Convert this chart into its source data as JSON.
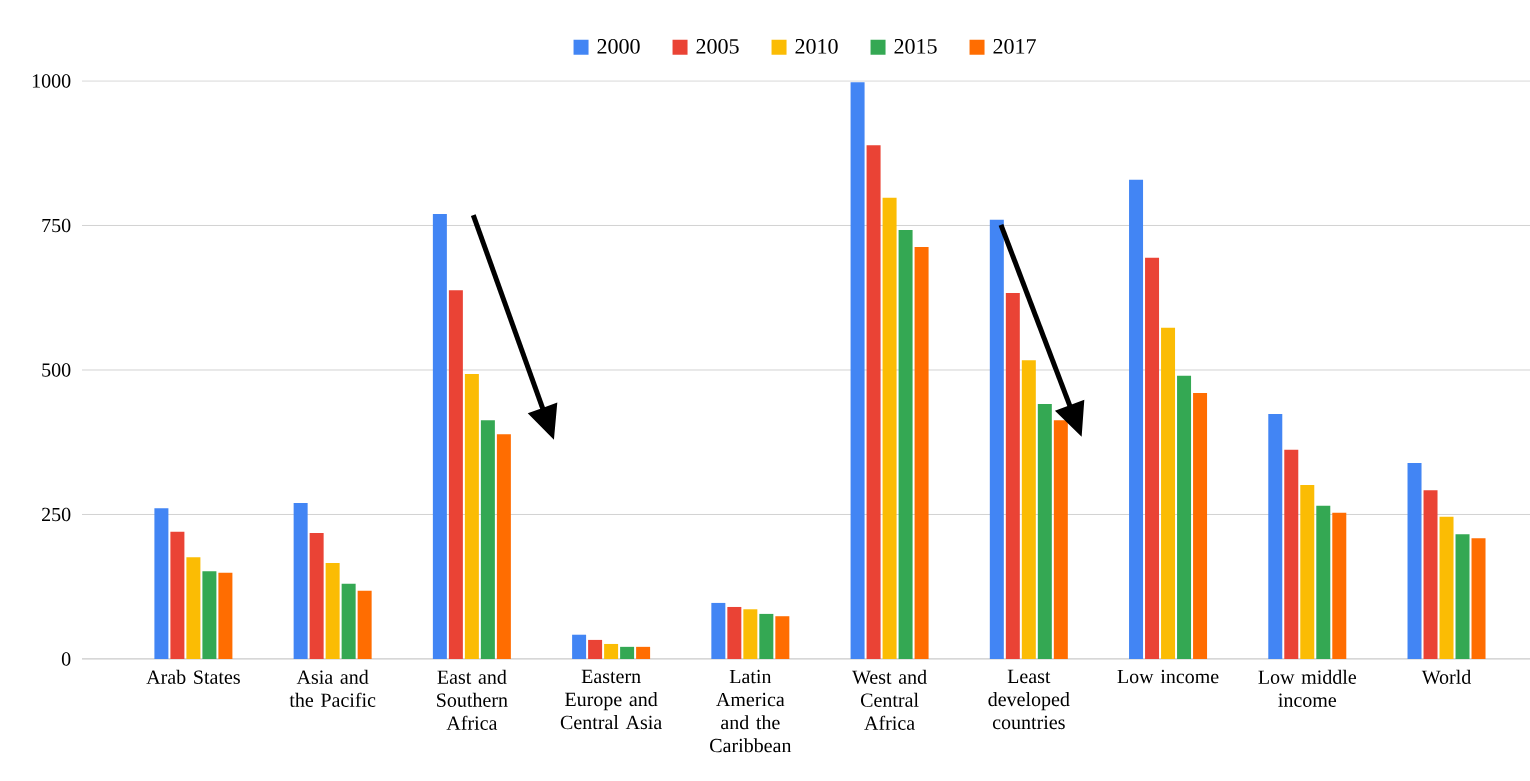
{
  "chart_data": {
    "type": "bar",
    "categories": [
      "Arab States",
      "Asia and the Pacific",
      "East and Southern Africa",
      "Eastern Europe and Central Asia",
      "Latin America and the Caribbean",
      "West and Central Africa",
      "Least developed countries",
      "Low income",
      "Low middle income",
      "World"
    ],
    "series": [
      {
        "name": "2000",
        "color": "#4285f4",
        "values": [
          261,
          270,
          770,
          42,
          97,
          998,
          760,
          829,
          424,
          339
        ]
      },
      {
        "name": "2005",
        "color": "#ea4335",
        "values": [
          220,
          218,
          638,
          33,
          90,
          889,
          633,
          694,
          362,
          292
        ]
      },
      {
        "name": "2010",
        "color": "#fbbc04",
        "values": [
          176,
          166,
          493,
          26,
          86,
          798,
          517,
          573,
          301,
          246
        ]
      },
      {
        "name": "2015",
        "color": "#34a853",
        "values": [
          152,
          130,
          413,
          21,
          78,
          742,
          441,
          490,
          265,
          216
        ]
      },
      {
        "name": "2017",
        "color": "#ff6d01",
        "values": [
          149,
          118,
          389,
          21,
          74,
          713,
          413,
          460,
          253,
          209
        ]
      }
    ],
    "ylim": [
      0,
      1000
    ],
    "yticks": [
      0,
      250,
      500,
      750,
      1000
    ],
    "grid": "y",
    "legend": "top"
  }
}
